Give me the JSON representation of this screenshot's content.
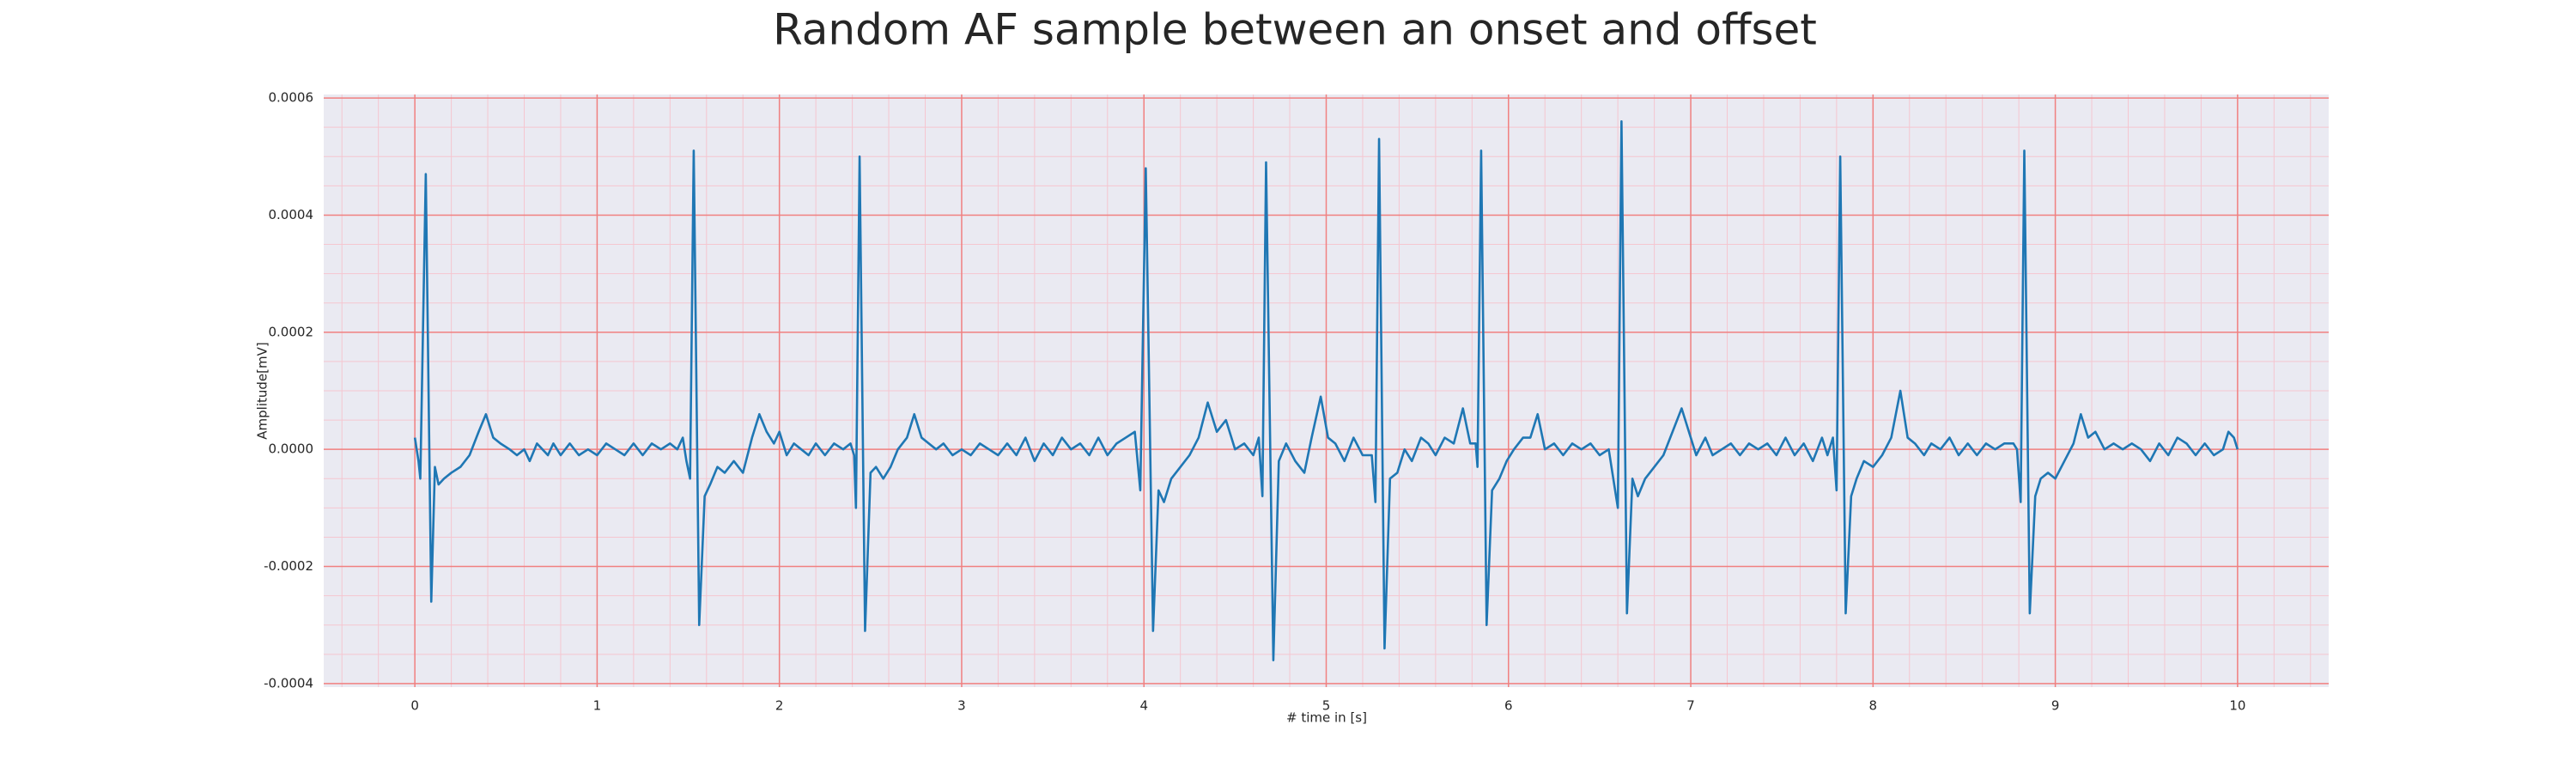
{
  "chart_data": {
    "type": "line",
    "title": "Random AF sample between an onset and offset",
    "xlabel": "# time in [s]",
    "ylabel": "Amplitude[mV]",
    "color": "#1f77b4",
    "grid": true,
    "grid_color": "#f08080",
    "minor_grid_color": "#f5c6d0",
    "minor_grid_divisions": [
      5,
      4
    ],
    "xlim": [
      -0.5,
      10.5
    ],
    "ylim": [
      -0.000406,
      0.000606
    ],
    "xticks": [
      0,
      1,
      2,
      3,
      4,
      5,
      6,
      7,
      8,
      9,
      10
    ],
    "yticks": [
      -0.0004,
      -0.0002,
      {
        "value": 0,
        "label": "0.0000"
      },
      0.0002,
      0.0004,
      0.0006
    ],
    "x": [
      0,
      0.02,
      0.03,
      0.06,
      0.09,
      0.11,
      0.13,
      0.16,
      0.2,
      0.25,
      0.3,
      0.35,
      0.39,
      0.43,
      0.47,
      0.52,
      0.56,
      0.6,
      0.63,
      0.67,
      0.7,
      0.73,
      0.76,
      0.8,
      0.85,
      0.9,
      0.95,
      1.0,
      1.05,
      1.1,
      1.15,
      1.2,
      1.25,
      1.3,
      1.35,
      1.4,
      1.44,
      1.47,
      1.49,
      1.51,
      1.53,
      1.56,
      1.59,
      1.62,
      1.66,
      1.7,
      1.75,
      1.8,
      1.85,
      1.89,
      1.93,
      1.97,
      2.0,
      2.04,
      2.08,
      2.12,
      2.16,
      2.2,
      2.25,
      2.3,
      2.35,
      2.39,
      2.41,
      2.42,
      2.44,
      2.47,
      2.5,
      2.53,
      2.57,
      2.61,
      2.65,
      2.7,
      2.74,
      2.78,
      2.82,
      2.86,
      2.9,
      2.95,
      3.0,
      3.05,
      3.1,
      3.15,
      3.2,
      3.25,
      3.3,
      3.35,
      3.4,
      3.45,
      3.5,
      3.55,
      3.6,
      3.65,
      3.7,
      3.75,
      3.8,
      3.85,
      3.9,
      3.95,
      3.98,
      4.01,
      4.05,
      4.08,
      4.11,
      4.15,
      4.2,
      4.25,
      4.3,
      4.35,
      4.4,
      4.45,
      4.5,
      4.55,
      4.6,
      4.63,
      4.65,
      4.67,
      4.71,
      4.74,
      4.78,
      4.83,
      4.88,
      4.92,
      4.97,
      5.01,
      5.05,
      5.1,
      5.15,
      5.2,
      5.25,
      5.27,
      5.29,
      5.32,
      5.35,
      5.39,
      5.43,
      5.47,
      5.52,
      5.56,
      5.6,
      5.65,
      5.7,
      5.75,
      5.79,
      5.82,
      5.83,
      5.85,
      5.88,
      5.91,
      5.95,
      5.99,
      6.03,
      6.08,
      6.12,
      6.16,
      6.2,
      6.25,
      6.3,
      6.35,
      6.4,
      6.45,
      6.5,
      6.55,
      6.6,
      6.62,
      6.65,
      6.68,
      6.71,
      6.75,
      6.8,
      6.85,
      6.9,
      6.95,
      6.99,
      7.03,
      7.08,
      7.12,
      7.17,
      7.22,
      7.27,
      7.32,
      7.37,
      7.42,
      7.47,
      7.52,
      7.57,
      7.62,
      7.67,
      7.72,
      7.75,
      7.78,
      7.8,
      7.82,
      7.85,
      7.88,
      7.91,
      7.95,
      8.0,
      8.05,
      8.1,
      8.15,
      8.19,
      8.23,
      8.28,
      8.32,
      8.37,
      8.42,
      8.47,
      8.52,
      8.57,
      8.62,
      8.67,
      8.72,
      8.77,
      8.79,
      8.81,
      8.83,
      8.86,
      8.89,
      8.92,
      8.96,
      9.0,
      9.05,
      9.1,
      9.14,
      9.18,
      9.22,
      9.27,
      9.32,
      9.37,
      9.42,
      9.47,
      9.52,
      9.57,
      9.62,
      9.67,
      9.72,
      9.77,
      9.82,
      9.87,
      9.92,
      9.95,
      9.98,
      10.0
    ],
    "values": [
      2e-05,
      -2e-05,
      -5e-05,
      0.00047,
      -0.00026,
      -3e-05,
      -6e-05,
      -5e-05,
      -4e-05,
      -3e-05,
      -1e-05,
      3e-05,
      6e-05,
      2e-05,
      1e-05,
      0,
      -1e-05,
      0,
      -2e-05,
      1e-05,
      0,
      -1e-05,
      1e-05,
      -1e-05,
      1e-05,
      -1e-05,
      0,
      -1e-05,
      1e-05,
      0,
      -1e-05,
      1e-05,
      -1e-05,
      1e-05,
      0,
      1e-05,
      0,
      2e-05,
      -2e-05,
      -5e-05,
      0.00051,
      -0.0003,
      -8e-05,
      -6e-05,
      -3e-05,
      -4e-05,
      -2e-05,
      -4e-05,
      2e-05,
      6e-05,
      3e-05,
      1e-05,
      3e-05,
      -1e-05,
      1e-05,
      0,
      -1e-05,
      1e-05,
      -1e-05,
      1e-05,
      0,
      1e-05,
      -1e-05,
      -0.0001,
      0.0005,
      -0.00031,
      -4e-05,
      -3e-05,
      -5e-05,
      -3e-05,
      0,
      2e-05,
      6e-05,
      2e-05,
      1e-05,
      0,
      1e-05,
      -1e-05,
      0,
      -1e-05,
      1e-05,
      0,
      -1e-05,
      1e-05,
      -1e-05,
      2e-05,
      -2e-05,
      1e-05,
      -1e-05,
      2e-05,
      0,
      1e-05,
      -1e-05,
      2e-05,
      -1e-05,
      1e-05,
      2e-05,
      3e-05,
      -7e-05,
      0.00048,
      -0.00031,
      -7e-05,
      -9e-05,
      -5e-05,
      -3e-05,
      -1e-05,
      2e-05,
      8e-05,
      3e-05,
      5e-05,
      0,
      1e-05,
      -1e-05,
      2e-05,
      -8e-05,
      0.00049,
      -0.00036,
      -2e-05,
      1e-05,
      -2e-05,
      -4e-05,
      2e-05,
      9e-05,
      2e-05,
      1e-05,
      -2e-05,
      2e-05,
      -1e-05,
      -1e-05,
      -9e-05,
      0.00053,
      -0.00034,
      -5e-05,
      -4e-05,
      0,
      -2e-05,
      2e-05,
      1e-05,
      -1e-05,
      2e-05,
      1e-05,
      7e-05,
      1e-05,
      1e-05,
      -3e-05,
      0.00051,
      -0.0003,
      -7e-05,
      -5e-05,
      -2e-05,
      0,
      2e-05,
      2e-05,
      6e-05,
      0,
      1e-05,
      -1e-05,
      1e-05,
      0,
      1e-05,
      -1e-05,
      0,
      -0.0001,
      0.00056,
      -0.00028,
      -5e-05,
      -8e-05,
      -5e-05,
      -3e-05,
      -1e-05,
      3e-05,
      7e-05,
      3e-05,
      -1e-05,
      2e-05,
      -1e-05,
      0,
      1e-05,
      -1e-05,
      1e-05,
      0,
      1e-05,
      -1e-05,
      2e-05,
      -1e-05,
      1e-05,
      -2e-05,
      2e-05,
      -1e-05,
      2e-05,
      -7e-05,
      0.0005,
      -0.00028,
      -8e-05,
      -5e-05,
      -2e-05,
      -3e-05,
      -1e-05,
      2e-05,
      0.0001,
      2e-05,
      1e-05,
      -1e-05,
      1e-05,
      0,
      2e-05,
      -1e-05,
      1e-05,
      -1e-05,
      1e-05,
      0,
      1e-05,
      1e-05,
      0,
      -9e-05,
      0.00051,
      -0.00028,
      -8e-05,
      -5e-05,
      -4e-05,
      -5e-05,
      -2e-05,
      1e-05,
      6e-05,
      2e-05,
      3e-05,
      0,
      1e-05,
      0,
      1e-05,
      0,
      -2e-05,
      1e-05,
      -1e-05,
      2e-05,
      1e-05,
      -1e-05,
      1e-05,
      -1e-05,
      0,
      3e-05,
      2e-05,
      0
    ]
  }
}
